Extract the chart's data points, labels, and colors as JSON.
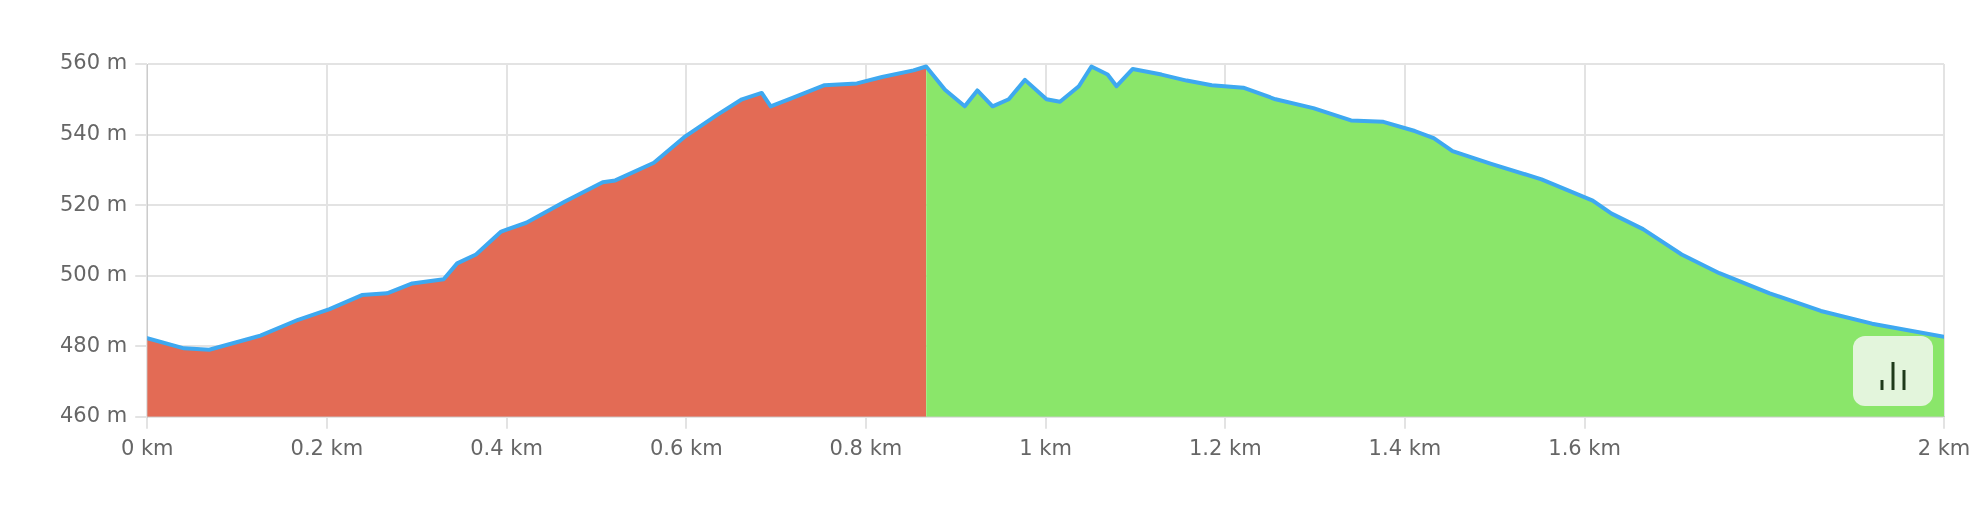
{
  "chart_data": {
    "type": "area",
    "xlim": [
      0,
      2
    ],
    "ylim": [
      460,
      560
    ],
    "xticks": [
      {
        "value": 0,
        "label": "0 km"
      },
      {
        "value": 0.2,
        "label": "0.2 km"
      },
      {
        "value": 0.4,
        "label": "0.4 km"
      },
      {
        "value": 0.6,
        "label": "0.6 km"
      },
      {
        "value": 0.8,
        "label": "0.8 km"
      },
      {
        "value": 1,
        "label": "1 km"
      },
      {
        "value": 1.2,
        "label": "1.2 km"
      },
      {
        "value": 1.4,
        "label": "1.4 km"
      },
      {
        "value": 1.6,
        "label": "1.6 km"
      },
      {
        "value": 2,
        "label": "2 km"
      }
    ],
    "yticks": [
      {
        "value": 460,
        "label": "460 m"
      },
      {
        "value": 480,
        "label": "480 m"
      },
      {
        "value": 500,
        "label": "500 m"
      },
      {
        "value": 520,
        "label": "520 m"
      },
      {
        "value": 540,
        "label": "540 m"
      },
      {
        "value": 560,
        "label": "560 m"
      }
    ],
    "grid": true,
    "legend": false,
    "marker": "none",
    "line_style": "solid",
    "series": [
      {
        "type": "area",
        "color": "#e36b55",
        "x": [
          0,
          0.041,
          0.069,
          0.126,
          0.168,
          0.203,
          0.239,
          0.267,
          0.295,
          0.33,
          0.345,
          0.366,
          0.394,
          0.422,
          0.465,
          0.507,
          0.521,
          0.564,
          0.599,
          0.634,
          0.662,
          0.684,
          0.694,
          0.719,
          0.754,
          0.79,
          0.818,
          0.853,
          0.867
        ],
        "values": [
          482.3,
          479.4,
          479,
          483,
          487.5,
          490.5,
          494.5,
          495,
          497.8,
          499,
          503.5,
          506,
          512.5,
          515,
          521,
          526.5,
          527,
          532,
          539.5,
          545.5,
          550,
          551.8,
          548,
          550.5,
          554,
          554.5,
          556.3,
          558.2,
          559.3
        ]
      },
      {
        "type": "area",
        "color": "#8ae66a",
        "x": [
          0.867,
          0.888,
          0.91,
          0.924,
          0.941,
          0.959,
          0.977,
          1.001,
          1.016,
          1.037,
          1.051,
          1.069,
          1.079,
          1.097,
          1.129,
          1.157,
          1.185,
          1.22,
          1.256,
          1.298,
          1.34,
          1.376,
          1.411,
          1.432,
          1.453,
          1.496,
          1.552,
          1.609,
          1.63,
          1.665,
          1.708,
          1.75,
          1.806,
          1.863,
          1.92,
          2
        ],
        "values": [
          559.3,
          552.7,
          548,
          552.5,
          548,
          550,
          555.5,
          550,
          549.3,
          553.7,
          559.3,
          557,
          553.7,
          558.6,
          557,
          555.3,
          554,
          553.3,
          550,
          547.5,
          544,
          543.6,
          541,
          539,
          535.3,
          531.7,
          527.3,
          521.3,
          517.6,
          513.2,
          506,
          500.7,
          495,
          490,
          486.4,
          482.7
        ]
      },
      {
        "type": "line",
        "color": "#3ea8f0",
        "x": [
          0,
          0.041,
          0.069,
          0.126,
          0.168,
          0.203,
          0.239,
          0.267,
          0.295,
          0.33,
          0.345,
          0.366,
          0.394,
          0.422,
          0.465,
          0.507,
          0.521,
          0.564,
          0.599,
          0.634,
          0.662,
          0.684,
          0.694,
          0.719,
          0.754,
          0.79,
          0.818,
          0.853,
          0.867,
          0.888,
          0.91,
          0.924,
          0.941,
          0.959,
          0.977,
          1.001,
          1.016,
          1.037,
          1.051,
          1.069,
          1.079,
          1.097,
          1.129,
          1.157,
          1.185,
          1.22,
          1.256,
          1.298,
          1.34,
          1.376,
          1.411,
          1.432,
          1.453,
          1.496,
          1.552,
          1.609,
          1.63,
          1.665,
          1.708,
          1.75,
          1.806,
          1.863,
          1.92,
          2
        ],
        "values": [
          482.3,
          479.4,
          479,
          483,
          487.5,
          490.5,
          494.5,
          495,
          497.8,
          499,
          503.5,
          506,
          512.5,
          515,
          521,
          526.5,
          527,
          532,
          539.5,
          545.5,
          550,
          551.8,
          548,
          550.5,
          554,
          554.5,
          556.3,
          558.2,
          559.3,
          552.7,
          548,
          552.5,
          548,
          550,
          555.5,
          550,
          549.3,
          553.7,
          559.3,
          557,
          553.7,
          558.6,
          557,
          555.3,
          554,
          553.3,
          550,
          547.5,
          544,
          543.6,
          541,
          539,
          535.3,
          531.7,
          527.3,
          521.3,
          517.6,
          513.2,
          506,
          500.7,
          495,
          490,
          486.4,
          482.7
        ]
      }
    ]
  }
}
